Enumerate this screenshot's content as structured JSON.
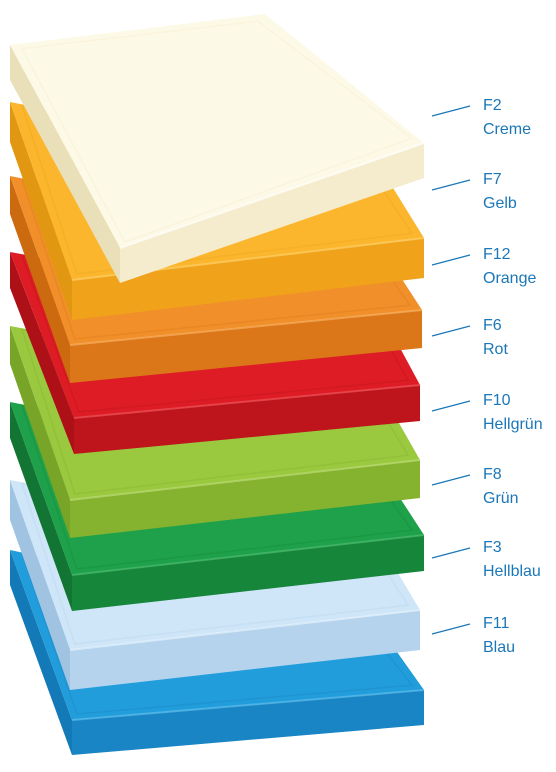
{
  "boards": [
    {
      "code": "F11",
      "name": "Blau",
      "top": "#229ddb",
      "side": "#1a85c4",
      "edge": "#147ab7",
      "hl": "#5bbbe9"
    },
    {
      "code": "F3",
      "name": "Hellblau",
      "top": "#cfe5f8",
      "side": "#b5d3ec",
      "edge": "#a1c3e2",
      "hl": "#e6f2fc"
    },
    {
      "code": "F8",
      "name": "Grün",
      "top": "#1ea14a",
      "side": "#16863a",
      "edge": "#127533",
      "hl": "#4ab96c"
    },
    {
      "code": "F10",
      "name": "Hellgrün",
      "top": "#9ac93f",
      "side": "#85b22f",
      "edge": "#78a527",
      "hl": "#bcdb75"
    },
    {
      "code": "F6",
      "name": "Rot",
      "top": "#dd1c25",
      "side": "#be141c",
      "edge": "#ae1018",
      "hl": "#ee5158"
    },
    {
      "code": "F12",
      "name": "Orange",
      "top": "#f18f2a",
      "side": "#db7718",
      "edge": "#cc6a10",
      "hl": "#f7b061"
    },
    {
      "code": "F7",
      "name": "Gelb",
      "top": "#fbb62d",
      "side": "#efa21a",
      "edge": "#e29712",
      "hl": "#fdd06a"
    },
    {
      "code": "F2",
      "name": "Creme",
      "top": "#fdf9e7",
      "side": "#f4eccc",
      "edge": "#e9dfb8",
      "hl": "#ffffff"
    }
  ]
}
